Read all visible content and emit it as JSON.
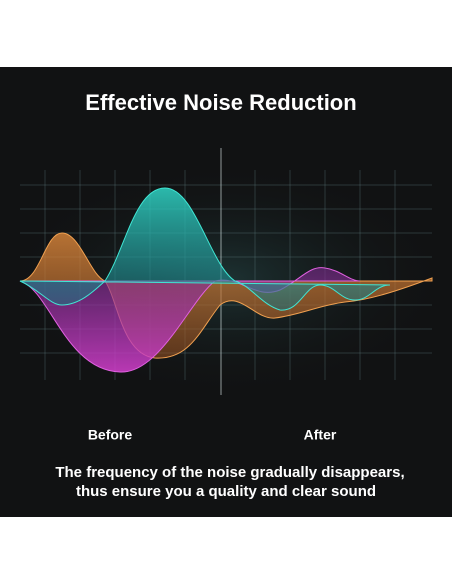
{
  "header": {
    "title": "Effective Noise Reduction"
  },
  "labels": {
    "before": "Before",
    "after": "After"
  },
  "caption": {
    "lines": [
      "The frequency of the noise gradually disappears,",
      "thus ensure you a quality and clear sound"
    ]
  }
}
